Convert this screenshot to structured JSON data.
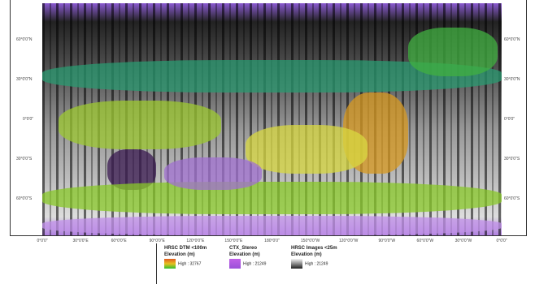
{
  "map": {
    "lat_labels": [
      "60°0'0\"N",
      "30°0'0\"N",
      "0°0'0\"",
      "30°0'0\"S",
      "60°0'0\"S"
    ],
    "lon_labels": [
      "0°0'0\"",
      "30°0'0\"E",
      "60°0'0\"E",
      "90°0'0\"E",
      "120°0'0\"E",
      "150°0'0\"E",
      "180°0'0\"",
      "150°0'0\"W",
      "120°0'0\"W",
      "90°0'0\"W",
      "60°0'0\"W",
      "30°0'0\"W",
      "0°0'0\""
    ]
  },
  "legend": {
    "items": [
      {
        "title": "HRSC DTM <100m",
        "subtitle": "Elevation (m)",
        "high": "High : 32767"
      },
      {
        "title": "CTX_Stereo",
        "subtitle": "Elevation (m)",
        "high": "High : 21249"
      },
      {
        "title": "HRSC Images <25m",
        "subtitle": "Elevation (m)",
        "high": "High : 21249"
      }
    ]
  }
}
